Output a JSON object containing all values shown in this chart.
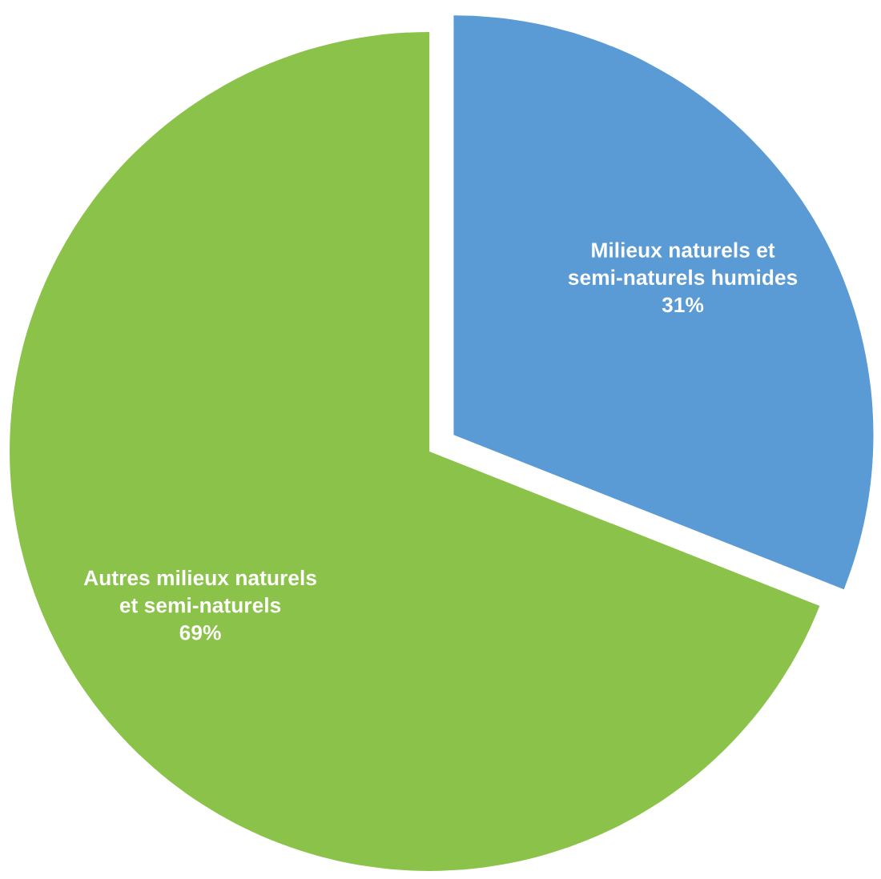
{
  "chart_data": {
    "type": "pie",
    "categories": [
      "Milieux naturels et\nsemi-naturels humides",
      "Autres milieux naturels\net semi-naturels"
    ],
    "values": [
      31,
      69
    ],
    "value_labels": [
      "31%",
      "69%"
    ],
    "colors": [
      "#5b9bd5",
      "#8bc34a"
    ],
    "legend": false
  }
}
